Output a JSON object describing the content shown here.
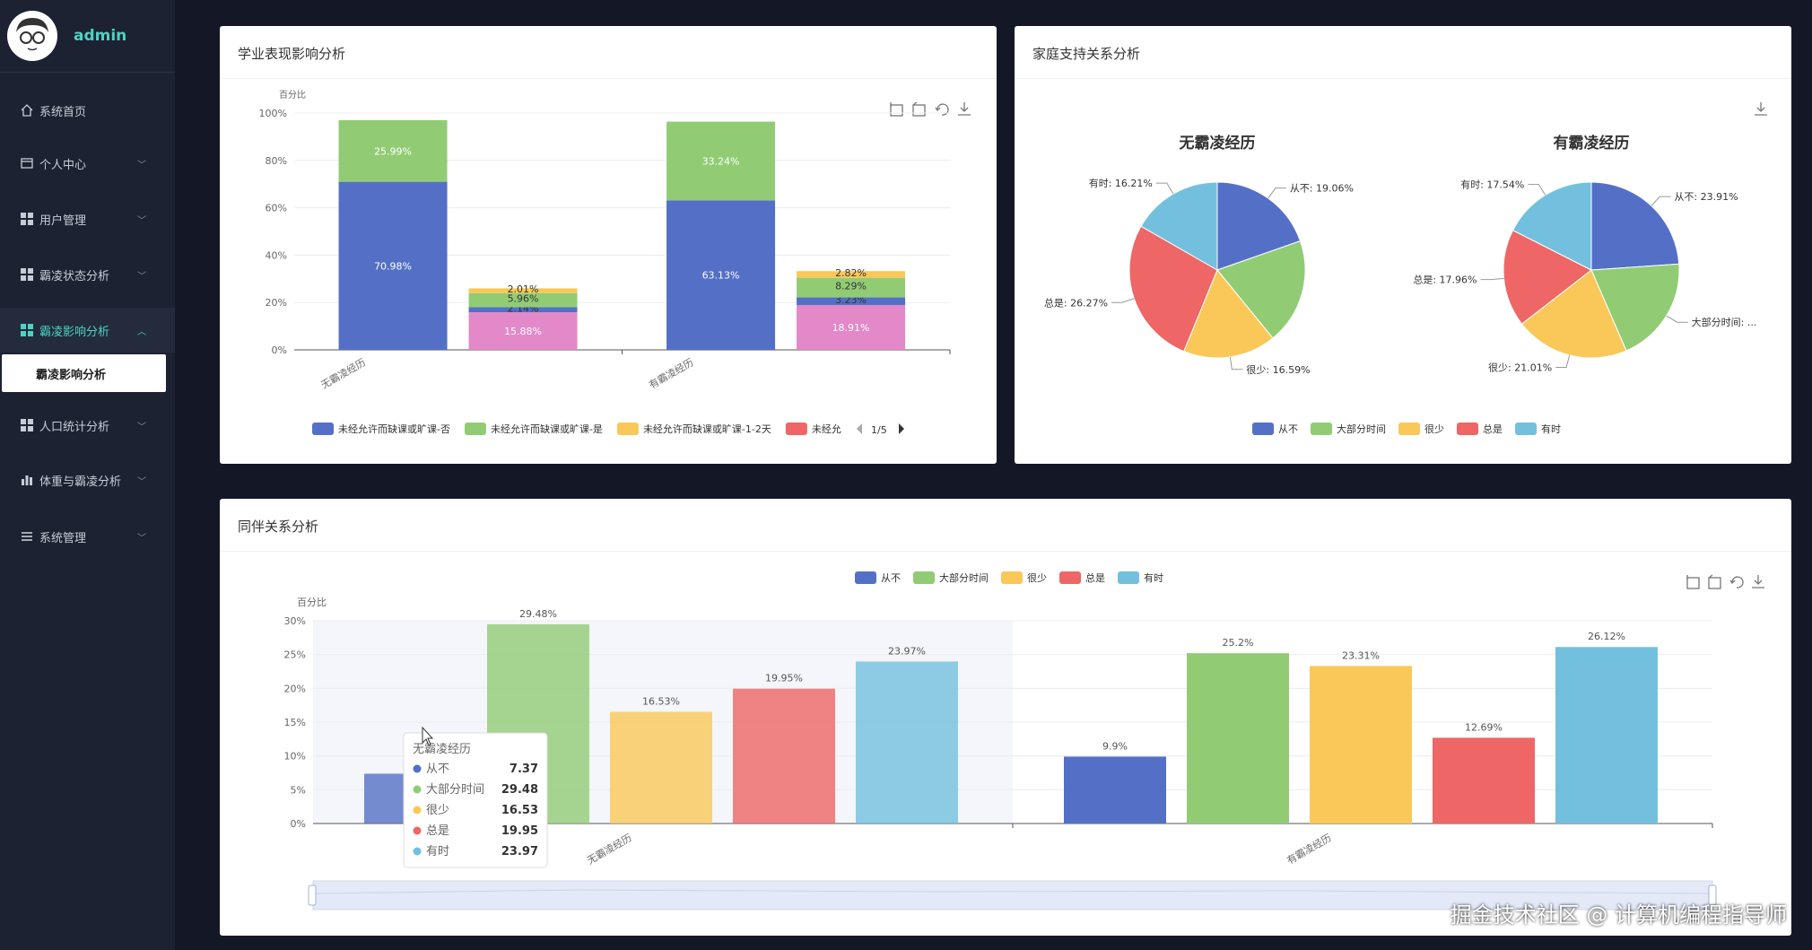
{
  "user": {
    "name": "admin"
  },
  "sidebar": {
    "items": [
      {
        "label": "系统首页",
        "icon": "home-icon",
        "expandable": false
      },
      {
        "label": "个人中心",
        "icon": "card-icon",
        "expandable": true
      },
      {
        "label": "用户管理",
        "icon": "grid-icon",
        "expandable": true
      },
      {
        "label": "霸凌状态分析",
        "icon": "grid-icon",
        "expandable": true
      },
      {
        "label": "霸凌影响分析",
        "icon": "grid-icon",
        "expandable": true,
        "active": true
      },
      {
        "label": "人口统计分析",
        "icon": "grid-icon",
        "expandable": true
      },
      {
        "label": "体重与霸凌分析",
        "icon": "bar-chart-icon",
        "expandable": true
      },
      {
        "label": "系统管理",
        "icon": "menu-icon",
        "expandable": true
      }
    ],
    "sub_item": "霸凌影响分析"
  },
  "panels": {
    "academic_title": "学业表现影响分析",
    "family_title": "家庭支持关系分析",
    "peer_title": "同伴关系分析"
  },
  "legend_pager": "1/5",
  "tooltip": {
    "title": "无霸凌经历",
    "rows": [
      {
        "name": "从不",
        "value": "7.37",
        "color": "#5470c6"
      },
      {
        "name": "大部分时间",
        "value": "29.48",
        "color": "#91cc75"
      },
      {
        "name": "很少",
        "value": "16.53",
        "color": "#fac858"
      },
      {
        "name": "总是",
        "value": "19.95",
        "color": "#ee6666"
      },
      {
        "name": "有时",
        "value": "23.97",
        "color": "#73c0de"
      }
    ]
  },
  "watermark": "掘金技术社区 @ 计算机编程指导师",
  "chart_data": [
    {
      "type": "bar",
      "stacked": true,
      "title": "学业表现影响分析",
      "ylabel": "百分比",
      "ylim": [
        0,
        100
      ],
      "yticks": [
        "0%",
        "20%",
        "40%",
        "60%",
        "80%",
        "100%"
      ],
      "categories": [
        "无霸凌经历",
        "有霸凌经历"
      ],
      "stacks": [
        {
          "category": "无霸凌经历",
          "bars": [
            {
              "segments": [
                {
                  "value": 70.98,
                  "label": "70.98%",
                  "color": "#5470c6"
                },
                {
                  "value": 25.99,
                  "label": "25.99%",
                  "color": "#91cc75"
                }
              ]
            },
            {
              "segments": [
                {
                  "value": 15.88,
                  "label": "15.88%",
                  "color": "#e388c8"
                },
                {
                  "value": 2.14,
                  "label": "2.14%",
                  "color": "#5470c6"
                },
                {
                  "value": 5.96,
                  "label": "5.96%",
                  "color": "#91cc75"
                },
                {
                  "value": 2.01,
                  "label": "2.01%",
                  "color": "#fac858"
                }
              ]
            }
          ]
        },
        {
          "category": "有霸凌经历",
          "bars": [
            {
              "segments": [
                {
                  "value": 63.13,
                  "label": "63.13%",
                  "color": "#5470c6"
                },
                {
                  "value": 33.24,
                  "label": "33.24%",
                  "color": "#91cc75"
                }
              ]
            },
            {
              "segments": [
                {
                  "value": 18.91,
                  "label": "18.91%",
                  "color": "#e388c8"
                },
                {
                  "value": 3.23,
                  "label": "3.23%",
                  "color": "#5470c6"
                },
                {
                  "value": 8.29,
                  "label": "8.29%",
                  "color": "#91cc75"
                },
                {
                  "value": 2.82,
                  "label": "2.82%",
                  "color": "#fac858"
                }
              ]
            }
          ]
        }
      ],
      "legend": [
        {
          "name": "未经允许而缺课或旷课-否",
          "color": "#5470c6"
        },
        {
          "name": "未经允许而缺课或旷课-是",
          "color": "#91cc75"
        },
        {
          "name": "未经允许而缺课或旷课-1-2天",
          "color": "#fac858"
        },
        {
          "name": "未经允",
          "color": "#ee6666"
        }
      ]
    },
    {
      "type": "pie",
      "title": "家庭支持关系分析",
      "legend": [
        {
          "name": "从不",
          "color": "#5470c6"
        },
        {
          "name": "大部分时间",
          "color": "#91cc75"
        },
        {
          "name": "很少",
          "color": "#fac858"
        },
        {
          "name": "总是",
          "color": "#ee6666"
        },
        {
          "name": "有时",
          "color": "#73c0de"
        }
      ],
      "pies": [
        {
          "title": "无霸凌经历",
          "slices": [
            {
              "name": "从不",
              "value": 19.06,
              "label": "从不: 19.06%"
            },
            {
              "name": "大部分时间",
              "value": 18.88,
              "label": ""
            },
            {
              "name": "很少",
              "value": 16.59,
              "label": "很少: 16.59%"
            },
            {
              "name": "总是",
              "value": 26.27,
              "label": "总是: 26.27%"
            },
            {
              "name": "有时",
              "value": 16.21,
              "label": "有时: 16.21%"
            }
          ]
        },
        {
          "title": "有霸凌经历",
          "slices": [
            {
              "name": "从不",
              "value": 23.91,
              "label": "从不: 23.91%"
            },
            {
              "name": "大部分时间",
              "value": 19.58,
              "label": "大部分时间: ..."
            },
            {
              "name": "很少",
              "value": 21.01,
              "label": "很少: 21.01%"
            },
            {
              "name": "总是",
              "value": 17.96,
              "label": "总是: 17.96%"
            },
            {
              "name": "有时",
              "value": 17.54,
              "label": "有时: 17.54%"
            }
          ]
        }
      ]
    },
    {
      "type": "bar",
      "title": "同伴关系分析",
      "ylabel": "百分比",
      "ylim": [
        0,
        30
      ],
      "yticks": [
        "0%",
        "5%",
        "10%",
        "15%",
        "20%",
        "25%",
        "30%"
      ],
      "categories": [
        "无霸凌经历",
        "有霸凌经历"
      ],
      "series": [
        {
          "name": "从不",
          "color": "#5470c6",
          "values": [
            7.37,
            9.9
          ],
          "labels": [
            "",
            "9.9%"
          ]
        },
        {
          "name": "大部分时间",
          "color": "#91cc75",
          "values": [
            29.48,
            25.2
          ],
          "labels": [
            "29.48%",
            "25.2%"
          ]
        },
        {
          "name": "很少",
          "color": "#fac858",
          "values": [
            16.53,
            23.31
          ],
          "labels": [
            "16.53%",
            "23.31%"
          ]
        },
        {
          "name": "总是",
          "color": "#ee6666",
          "values": [
            19.95,
            12.69
          ],
          "labels": [
            "19.95%",
            "12.69%"
          ]
        },
        {
          "name": "有时",
          "color": "#73c0de",
          "values": [
            23.97,
            26.12
          ],
          "labels": [
            "23.97%",
            "26.12%"
          ]
        }
      ]
    }
  ]
}
